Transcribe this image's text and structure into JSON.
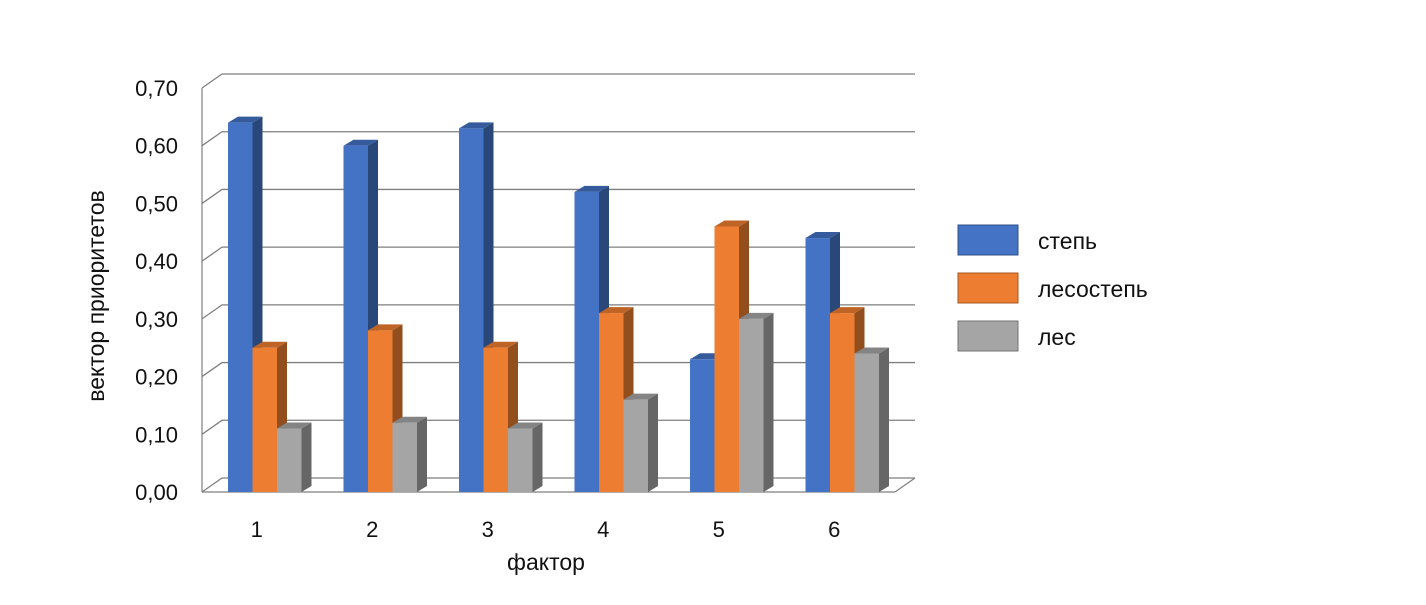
{
  "chart_data": {
    "type": "bar",
    "style": "3d-clustered-column",
    "categories": [
      "1",
      "2",
      "3",
      "4",
      "5",
      "6"
    ],
    "series": [
      {
        "name": "степь",
        "values": [
          0.64,
          0.6,
          0.63,
          0.52,
          0.23,
          0.44
        ],
        "color": "#4472C4"
      },
      {
        "name": "лесостепь",
        "values": [
          0.25,
          0.28,
          0.25,
          0.31,
          0.46,
          0.31
        ],
        "color": "#ED7D31"
      },
      {
        "name": "лес",
        "values": [
          0.11,
          0.12,
          0.11,
          0.16,
          0.3,
          0.24
        ],
        "color": "#A5A5A5"
      }
    ],
    "title": "",
    "xlabel": "фактор",
    "ylabel": "вектор приоритетов",
    "ylim": [
      0,
      0.7
    ],
    "yticks": [
      "0,00",
      "0,10",
      "0,20",
      "0,30",
      "0,40",
      "0,50",
      "0,60",
      "0,70"
    ],
    "grid": true,
    "legend_position": "right"
  }
}
